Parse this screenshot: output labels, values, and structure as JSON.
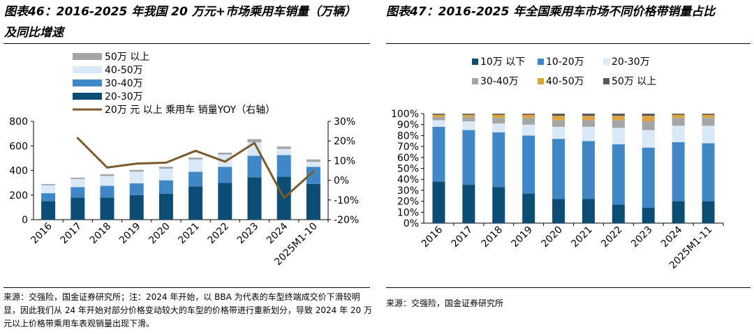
{
  "left": {
    "title": "图表46：2016-2025 年我国 20 万元+市场乘用车销量（万辆）及同比增速",
    "source": "来源：交强险，国金证券研究所；注：2024 年开始，以 BBA 为代表的车型终端成交价下滑较明显，因此我们从 24 年开始对部分价格变动较大的车型的价格带进行重新划分，导致 2024 年 20 万元以上价格带乘用车表观销量出现下滑。"
  },
  "right": {
    "title": "图表47：2016-2025 年全国乘用车市场不同价格带销量占比",
    "source": "来源：交强险，国金证券研究所"
  },
  "chart_data": [
    {
      "type": "bar",
      "stacked": true,
      "categories": [
        "2016",
        "2017",
        "2018",
        "2019",
        "2020",
        "2021",
        "2022",
        "2023",
        "2024",
        "2025M1-10"
      ],
      "series": [
        {
          "name": "20-30万",
          "color": "#0b4d74",
          "values": [
            150,
            180,
            180,
            200,
            210,
            270,
            300,
            345,
            350,
            290
          ]
        },
        {
          "name": "30-40万",
          "color": "#3f87c6",
          "values": [
            65,
            85,
            95,
            95,
            110,
            120,
            130,
            175,
            175,
            140
          ]
        },
        {
          "name": "40-50万",
          "color": "#d9e9f7",
          "values": [
            65,
            65,
            80,
            95,
            95,
            100,
            100,
            110,
            50,
            40
          ]
        },
        {
          "name": "50万 以上",
          "color": "#a5a5a5",
          "values": [
            10,
            12,
            15,
            15,
            15,
            15,
            15,
            25,
            20,
            20
          ]
        }
      ],
      "line": {
        "name": "20万 元 以上 乘用车 销量YOY（右轴）",
        "color": "#7b5a2b",
        "values": [
          21.5,
          6.5,
          8.5,
          9,
          15,
          9.5,
          19,
          -9,
          4.5
        ]
      },
      "ylim": [
        0,
        800
      ],
      "yticks": [
        0,
        200,
        400,
        600,
        800
      ],
      "y2lim": [
        -20,
        30
      ],
      "y2ticks": [
        "-20%",
        "-10%",
        "0%",
        "10%",
        "20%",
        "30%"
      ],
      "legend_position": "top-left",
      "grid": false
    },
    {
      "type": "bar",
      "stacked": true,
      "categories": [
        "2016",
        "2017",
        "2018",
        "2019",
        "2020",
        "2021",
        "2022",
        "2023",
        "2024",
        "2025M1-11"
      ],
      "series": [
        {
          "name": "10万 以下",
          "color": "#0b4d74",
          "values": [
            38,
            35,
            33,
            27,
            22,
            22,
            17,
            14,
            20,
            20
          ]
        },
        {
          "name": "10-20万",
          "color": "#3f87c6",
          "values": [
            50,
            50,
            50,
            53,
            55,
            53,
            55,
            55,
            54,
            53
          ]
        },
        {
          "name": "20-30万",
          "color": "#d9e9f7",
          "values": [
            6,
            8,
            8,
            10,
            11,
            13,
            15,
            16,
            15,
            16
          ]
        },
        {
          "name": "30-40万",
          "color": "#a5a5a5",
          "values": [
            3,
            4,
            5,
            6,
            6,
            6,
            7,
            8,
            7,
            7
          ]
        },
        {
          "name": "40-50万",
          "color": "#d9a441",
          "values": [
            2,
            2,
            3,
            3,
            4,
            4,
            4,
            5,
            3,
            3
          ]
        },
        {
          "name": "50万 以上",
          "color": "#595959",
          "values": [
            1,
            1,
            1,
            1,
            2,
            2,
            2,
            2,
            1,
            1
          ]
        }
      ],
      "ylim": [
        0,
        100
      ],
      "yticks": [
        "0%",
        "10%",
        "20%",
        "30%",
        "40%",
        "50%",
        "60%",
        "70%",
        "80%",
        "90%",
        "100%"
      ],
      "legend_position": "top",
      "grid": false
    }
  ]
}
